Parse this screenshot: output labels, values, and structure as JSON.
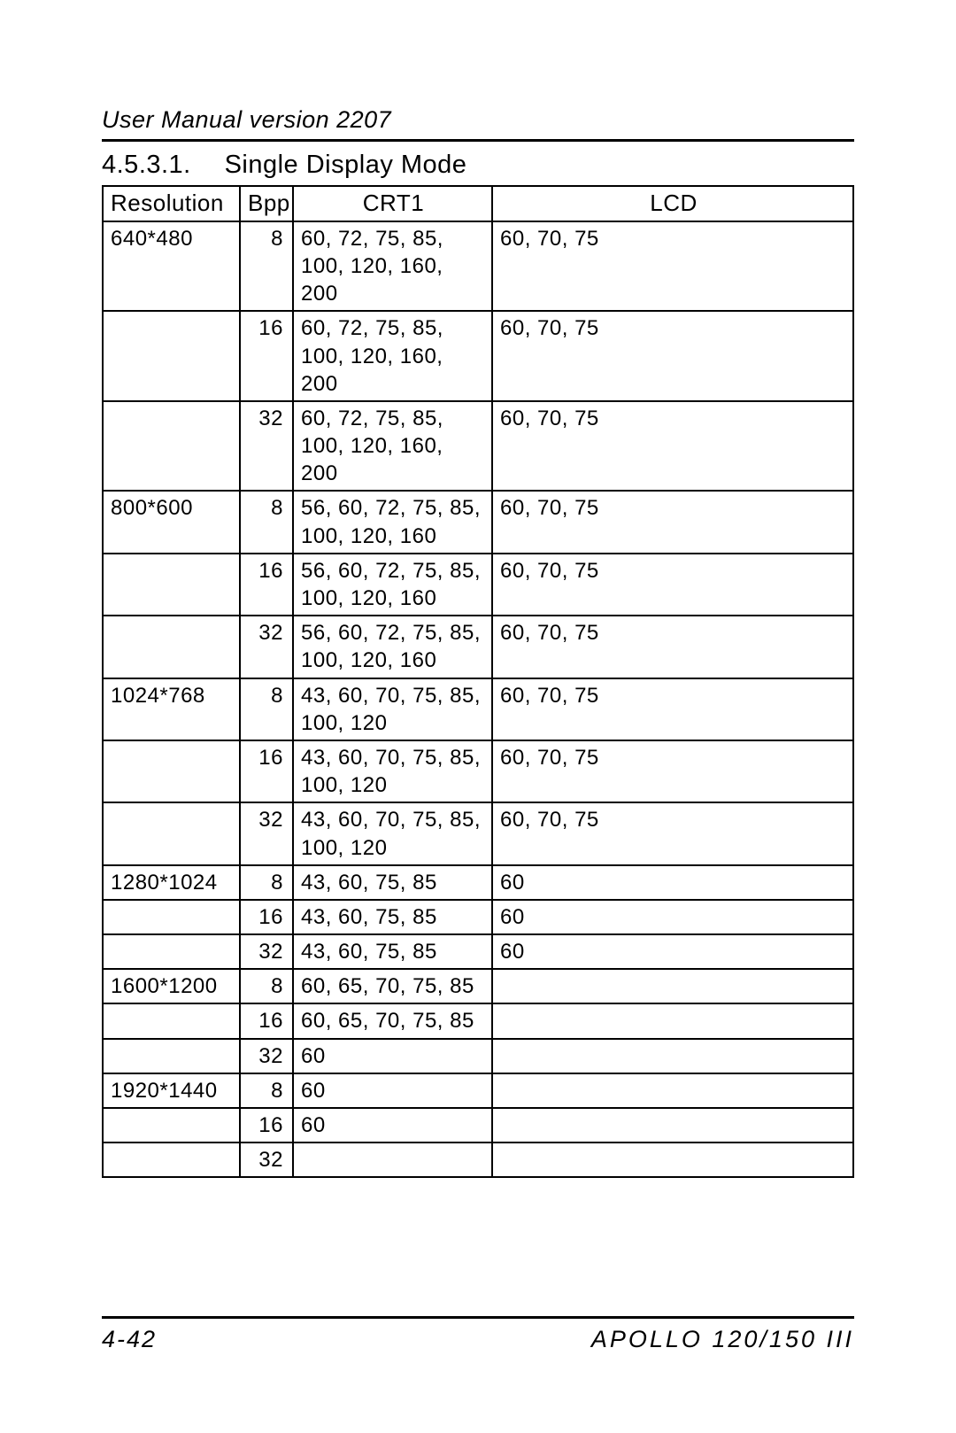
{
  "header": {
    "text": "User Manual version 2207"
  },
  "section": {
    "number": "4.5.3.1.",
    "title": "Single Display Mode"
  },
  "table": {
    "columns": [
      "Resolution",
      "Bpp",
      "CRT1",
      "LCD"
    ],
    "rows": [
      {
        "resolution": "640*480",
        "bpp": "8",
        "crt1": "60, 72, 75, 85, 100, 120, 160, 200",
        "lcd": "60, 70, 75"
      },
      {
        "resolution": "",
        "bpp": "16",
        "crt1": "60, 72, 75, 85, 100, 120, 160, 200",
        "lcd": "60, 70, 75"
      },
      {
        "resolution": "",
        "bpp": "32",
        "crt1": "60, 72, 75, 85, 100, 120, 160, 200",
        "lcd": "60, 70, 75"
      },
      {
        "resolution": "800*600",
        "bpp": "8",
        "crt1": "56, 60, 72, 75, 85, 100, 120, 160",
        "lcd": "60, 70, 75"
      },
      {
        "resolution": "",
        "bpp": "16",
        "crt1": "56, 60, 72, 75, 85, 100, 120, 160",
        "lcd": "60, 70, 75"
      },
      {
        "resolution": "",
        "bpp": "32",
        "crt1": "56, 60, 72, 75, 85, 100, 120, 160",
        "lcd": "60, 70, 75"
      },
      {
        "resolution": "1024*768",
        "bpp": "8",
        "crt1": "43, 60, 70, 75, 85, 100, 120",
        "lcd": "60, 70, 75"
      },
      {
        "resolution": "",
        "bpp": "16",
        "crt1": "43, 60, 70, 75, 85, 100, 120",
        "lcd": "60, 70, 75"
      },
      {
        "resolution": "",
        "bpp": "32",
        "crt1": "43, 60, 70, 75, 85, 100, 120",
        "lcd": "60, 70, 75"
      },
      {
        "resolution": "1280*1024",
        "bpp": "8",
        "crt1": "43, 60, 75, 85",
        "lcd": "60"
      },
      {
        "resolution": "",
        "bpp": "16",
        "crt1": "43, 60, 75, 85",
        "lcd": "60"
      },
      {
        "resolution": "",
        "bpp": "32",
        "crt1": "43, 60, 75, 85",
        "lcd": "60"
      },
      {
        "resolution": "1600*1200",
        "bpp": "8",
        "crt1": "60, 65, 70, 75, 85",
        "lcd": ""
      },
      {
        "resolution": "",
        "bpp": "16",
        "crt1": "60, 65, 70, 75, 85",
        "lcd": ""
      },
      {
        "resolution": "",
        "bpp": "32",
        "crt1": "60",
        "lcd": ""
      },
      {
        "resolution": "1920*1440",
        "bpp": "8",
        "crt1": "60",
        "lcd": ""
      },
      {
        "resolution": "",
        "bpp": "16",
        "crt1": "60",
        "lcd": ""
      },
      {
        "resolution": "",
        "bpp": "32",
        "crt1": "",
        "lcd": ""
      }
    ]
  },
  "footer": {
    "page": "4-42",
    "product": "APOLLO 120/150 III"
  }
}
